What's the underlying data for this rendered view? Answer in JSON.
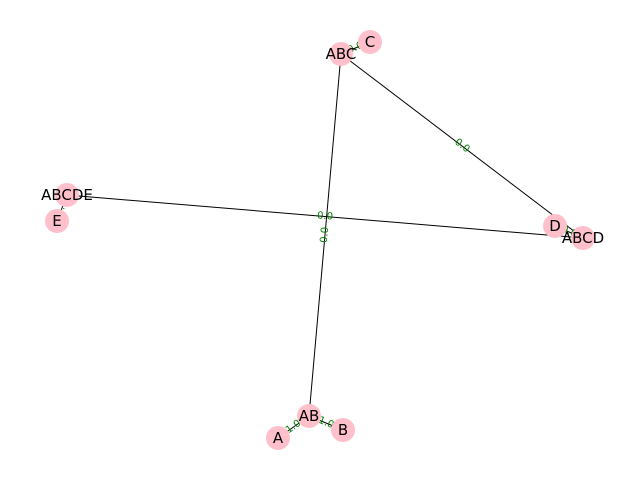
{
  "graph": {
    "node_color": "#ffc0cb",
    "edge_color": "#000000",
    "edge_label_color": "#008000",
    "nodes": [
      {
        "id": "ABC",
        "label": "ABC"
      },
      {
        "id": "C",
        "label": "C"
      },
      {
        "id": "ABCDE",
        "label": "ABCDE"
      },
      {
        "id": "E",
        "label": "E"
      },
      {
        "id": "D",
        "label": "D"
      },
      {
        "id": "ABCD",
        "label": "ABCD"
      },
      {
        "id": "AB",
        "label": "AB"
      },
      {
        "id": "A",
        "label": "A"
      },
      {
        "id": "B",
        "label": "B"
      }
    ],
    "edges": [
      {
        "source": "ABC",
        "target": "C",
        "label": "0.0"
      },
      {
        "source": "ABC",
        "target": "ABCD",
        "label": "0.0"
      },
      {
        "source": "ABC",
        "target": "AB",
        "label": "0.0"
      },
      {
        "source": "ABCDE",
        "target": "E",
        "label": "0.0"
      },
      {
        "source": "ABCDE",
        "target": "ABCD",
        "label": "0.0"
      },
      {
        "source": "D",
        "target": "ABCD",
        "label": "0.0"
      },
      {
        "source": "AB",
        "target": "A",
        "label": "1.0"
      },
      {
        "source": "AB",
        "target": "B",
        "label": "1.0"
      }
    ]
  }
}
